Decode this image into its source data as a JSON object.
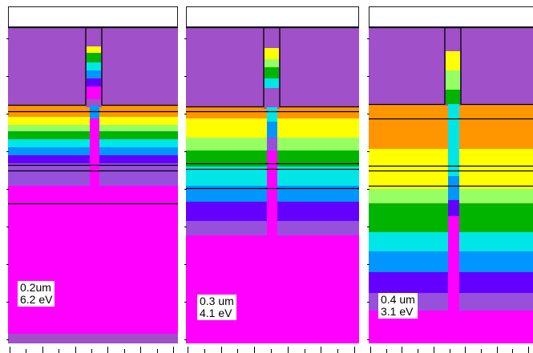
{
  "panels": [
    {
      "thickness_label": "0.2um",
      "energy_label": "6.2 eV",
      "colors": {
        "cladding": "#a050c8",
        "ridge": [
          "#ffff00",
          "#00b400",
          "#00e6e6",
          "#0096ff",
          "#6400ff",
          "#ff00ff"
        ],
        "bands": [
          "#ff9600",
          "#ffff00",
          "#96ff64",
          "#00b400",
          "#00e6e6",
          "#0096ff",
          "#6400ff",
          "#9650dc",
          "#ff00ff"
        ]
      }
    },
    {
      "thickness_label": "0.3 um",
      "energy_label": "4.1 eV",
      "colors": {
        "cladding": "#a050c8",
        "ridge": [
          "#ffff00",
          "#96ff64",
          "#00b400",
          "#00e6e6",
          "#0096ff",
          "#ff00ff"
        ],
        "bands": [
          "#ff9600",
          "#ffff00",
          "#96ff64",
          "#00b400",
          "#00e6e6",
          "#0096ff",
          "#6400ff",
          "#9650dc",
          "#ff00ff"
        ]
      }
    },
    {
      "thickness_label": "0.4 um",
      "energy_label": "3.1 eV",
      "colors": {
        "cladding": "#a050c8",
        "ridge": [
          "#ffff00",
          "#96ff64",
          "#00b400",
          "#00e6e6",
          "#0096ff",
          "#ff00ff"
        ],
        "bands": [
          "#ff9600",
          "#ffff00",
          "#96ff64",
          "#00b400",
          "#00e6e6",
          "#0096ff",
          "#6400ff",
          "#9650dc",
          "#ff00ff"
        ]
      }
    }
  ]
}
